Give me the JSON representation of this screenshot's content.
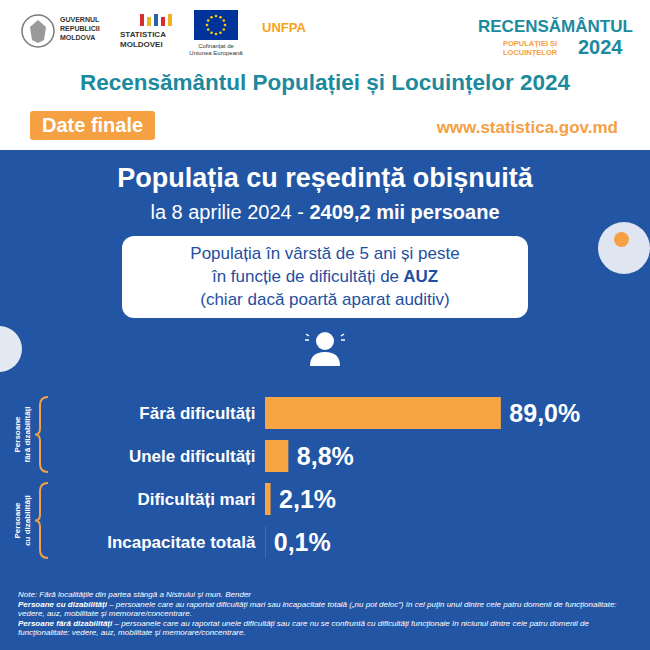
{
  "header": {
    "logos": [
      "GUVERNUL REPUBLICII MOLDOVA",
      "STATISTICA MOLDOVEI",
      "Cofinanțat de Uniunea Europeană",
      "UNFPA"
    ],
    "census_logo": {
      "name": "RECENSĂMÂNTUL",
      "subtitle": [
        "POPULAȚIEI ȘI",
        "LOCUINȚELOR"
      ],
      "year": "2024"
    },
    "title": "Recensământul Populației și Locuințelor 2024",
    "badge": "Date finale",
    "url": "www.statistica.gov.md"
  },
  "chart_data": {
    "type": "bar",
    "orientation": "horizontal",
    "title": "Populația cu reședință obișnuită",
    "subtitle": "la 8 aprilie 2024 - 2409,2 mii persoane",
    "description": [
      "Populația în vârstă de 5 ani și peste",
      "în funcție de dificultăți de AUZ",
      "(chiar dacă poartă aparat auditiv)"
    ],
    "categories": [
      "Fără dificultăți",
      "Unele dificultăți",
      "Dificultăți mari",
      "Incapacitate totală"
    ],
    "values": [
      89.0,
      8.8,
      2.1,
      0.1
    ],
    "value_labels": [
      "89,0%",
      "8,8%",
      "2,1%",
      "0,1%"
    ],
    "data_labels": true,
    "color": "#f7a543",
    "xlim": [
      0,
      100
    ],
    "tick_labels": "y",
    "annotations": [
      {
        "text": "Persoane fără dizabilități",
        "categories": [
          "Fără dificultăți",
          "Unele dificultăți"
        ]
      },
      {
        "text": "Persoane cu dizabilități",
        "categories": [
          "Dificultăți mari",
          "Incapacitate totală"
        ]
      }
    ]
  },
  "notes": [
    {
      "label": "Note:",
      "text": "Fără localitățile din partea stângă a Nistrului și mun. Bender"
    },
    {
      "label": "Persoane cu dizabilități",
      "text": "– persoanele care au raportat dificultăți mari sau incapacitate totală („nu pot deloc”) în cel puțin unul dintre cele patru domenii de funcționalitate: vedere, auz, mobilitate și memorare/concentrare."
    },
    {
      "label": "Persoane fără dizabilități",
      "text": "– persoanele care au raportat unele dificultăți sau care nu se confruntă cu dificultăți funcționale în niciunul dintre cele patru domenii de funcționalitate: vedere, auz, mobilitate și memorare/concentrare."
    }
  ]
}
